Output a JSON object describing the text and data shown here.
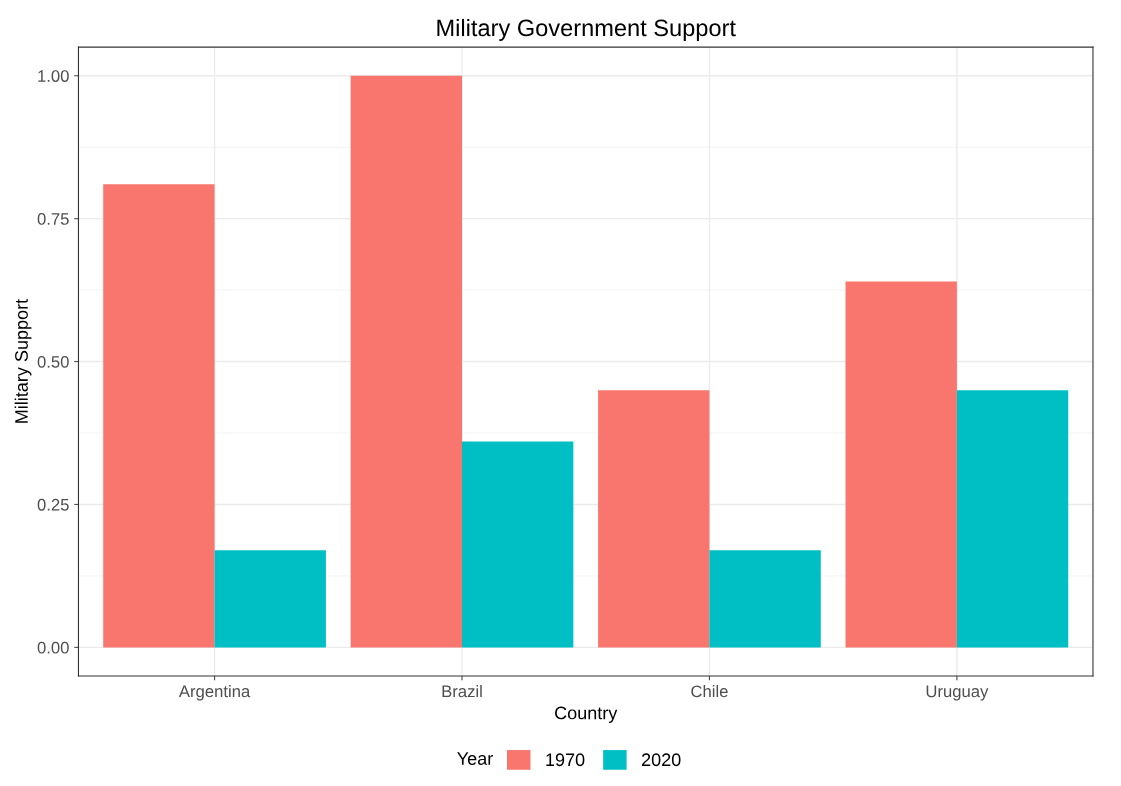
{
  "chart_data": {
    "type": "bar",
    "title": "Military Government Support",
    "xlabel": "Country",
    "ylabel": "Military Support",
    "categories": [
      "Argentina",
      "Brazil",
      "Chile",
      "Uruguay"
    ],
    "series": [
      {
        "name": "1970",
        "color": "#f8766d",
        "values": [
          0.81,
          1.0,
          0.45,
          0.64
        ]
      },
      {
        "name": "2020",
        "color": "#00bfc4",
        "values": [
          0.17,
          0.36,
          0.17,
          0.45
        ]
      }
    ],
    "ylim": [
      -0.05,
      1.05
    ],
    "yticks": [
      {
        "value": 0,
        "label": "0.00"
      },
      {
        "value": 0.25,
        "label": "0.25"
      },
      {
        "value": 0.5,
        "label": "0.50"
      },
      {
        "value": 0.75,
        "label": "0.75"
      },
      {
        "value": 1.0,
        "label": "1.00"
      }
    ],
    "grid": true,
    "legend": "bottom",
    "legend_title": "Year"
  }
}
